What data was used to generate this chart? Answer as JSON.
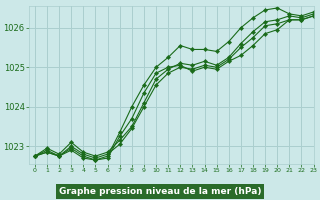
{
  "title": "Graphe pression niveau de la mer (hPa)",
  "bg_color": "#cce8e8",
  "plot_bg_color": "#cce8e8",
  "grid_color": "#aacece",
  "line_color": "#1a6b1a",
  "title_bg_color": "#2a6b2a",
  "title_text_color": "#ffffff",
  "xlim": [
    -0.5,
    23
  ],
  "ylim": [
    1022.55,
    1026.55
  ],
  "yticks": [
    1023,
    1024,
    1025,
    1026
  ],
  "xticks": [
    0,
    1,
    2,
    3,
    4,
    5,
    6,
    7,
    8,
    9,
    10,
    11,
    12,
    13,
    14,
    15,
    16,
    17,
    18,
    19,
    20,
    21,
    22,
    23
  ],
  "series": [
    [
      1022.75,
      1022.85,
      1022.75,
      1022.95,
      1022.75,
      1022.65,
      1022.7,
      1023.25,
      1023.7,
      1024.35,
      1024.85,
      1025.0,
      1025.05,
      1024.9,
      1025.0,
      1024.95,
      1025.15,
      1025.3,
      1025.55,
      1025.85,
      1025.95,
      1026.2,
      1026.2,
      1026.3
    ],
    [
      1022.75,
      1022.9,
      1022.75,
      1023.0,
      1022.8,
      1022.7,
      1022.8,
      1023.05,
      1023.45,
      1024.0,
      1024.55,
      1024.85,
      1025.0,
      1024.95,
      1025.05,
      1025.0,
      1025.2,
      1025.5,
      1025.75,
      1026.05,
      1026.1,
      1026.2,
      1026.2,
      1026.3
    ],
    [
      1022.75,
      1022.95,
      1022.8,
      1023.1,
      1022.85,
      1022.75,
      1022.85,
      1023.15,
      1023.5,
      1024.1,
      1024.7,
      1024.95,
      1025.1,
      1025.05,
      1025.15,
      1025.05,
      1025.25,
      1025.6,
      1025.9,
      1026.15,
      1026.2,
      1026.3,
      1026.25,
      1026.35
    ],
    [
      1022.75,
      1022.85,
      1022.75,
      1022.9,
      1022.7,
      1022.65,
      1022.75,
      1023.35,
      1024.0,
      1024.55,
      1025.0,
      1025.25,
      1025.55,
      1025.45,
      1025.45,
      1025.4,
      1025.65,
      1026.0,
      1026.25,
      1026.45,
      1026.5,
      1026.35,
      1026.3,
      1026.4
    ]
  ]
}
